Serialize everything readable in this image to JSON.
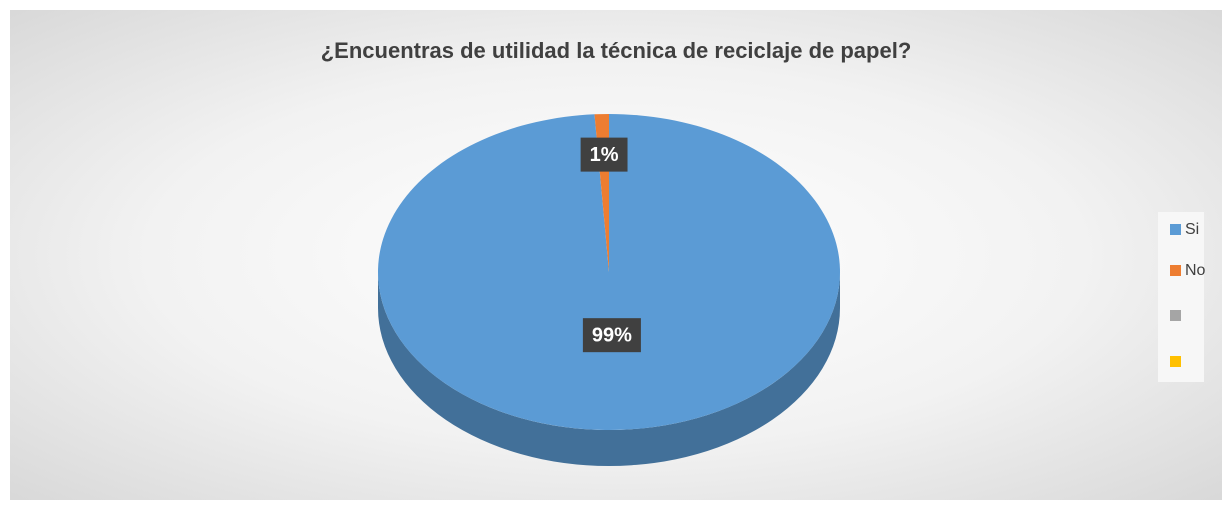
{
  "chart_data": {
    "type": "pie",
    "title": "¿Encuentras de utilidad la técnica de reciclaje de papel?",
    "categories": [
      "Si",
      "No",
      null,
      null
    ],
    "values": [
      99,
      1,
      0,
      0
    ],
    "value_labels": [
      "99%",
      "1%",
      null,
      null
    ],
    "colors": [
      "#5b9bd5",
      "#ed7d31",
      "#a5a5a5",
      "#ffc000"
    ],
    "legend": "right"
  }
}
